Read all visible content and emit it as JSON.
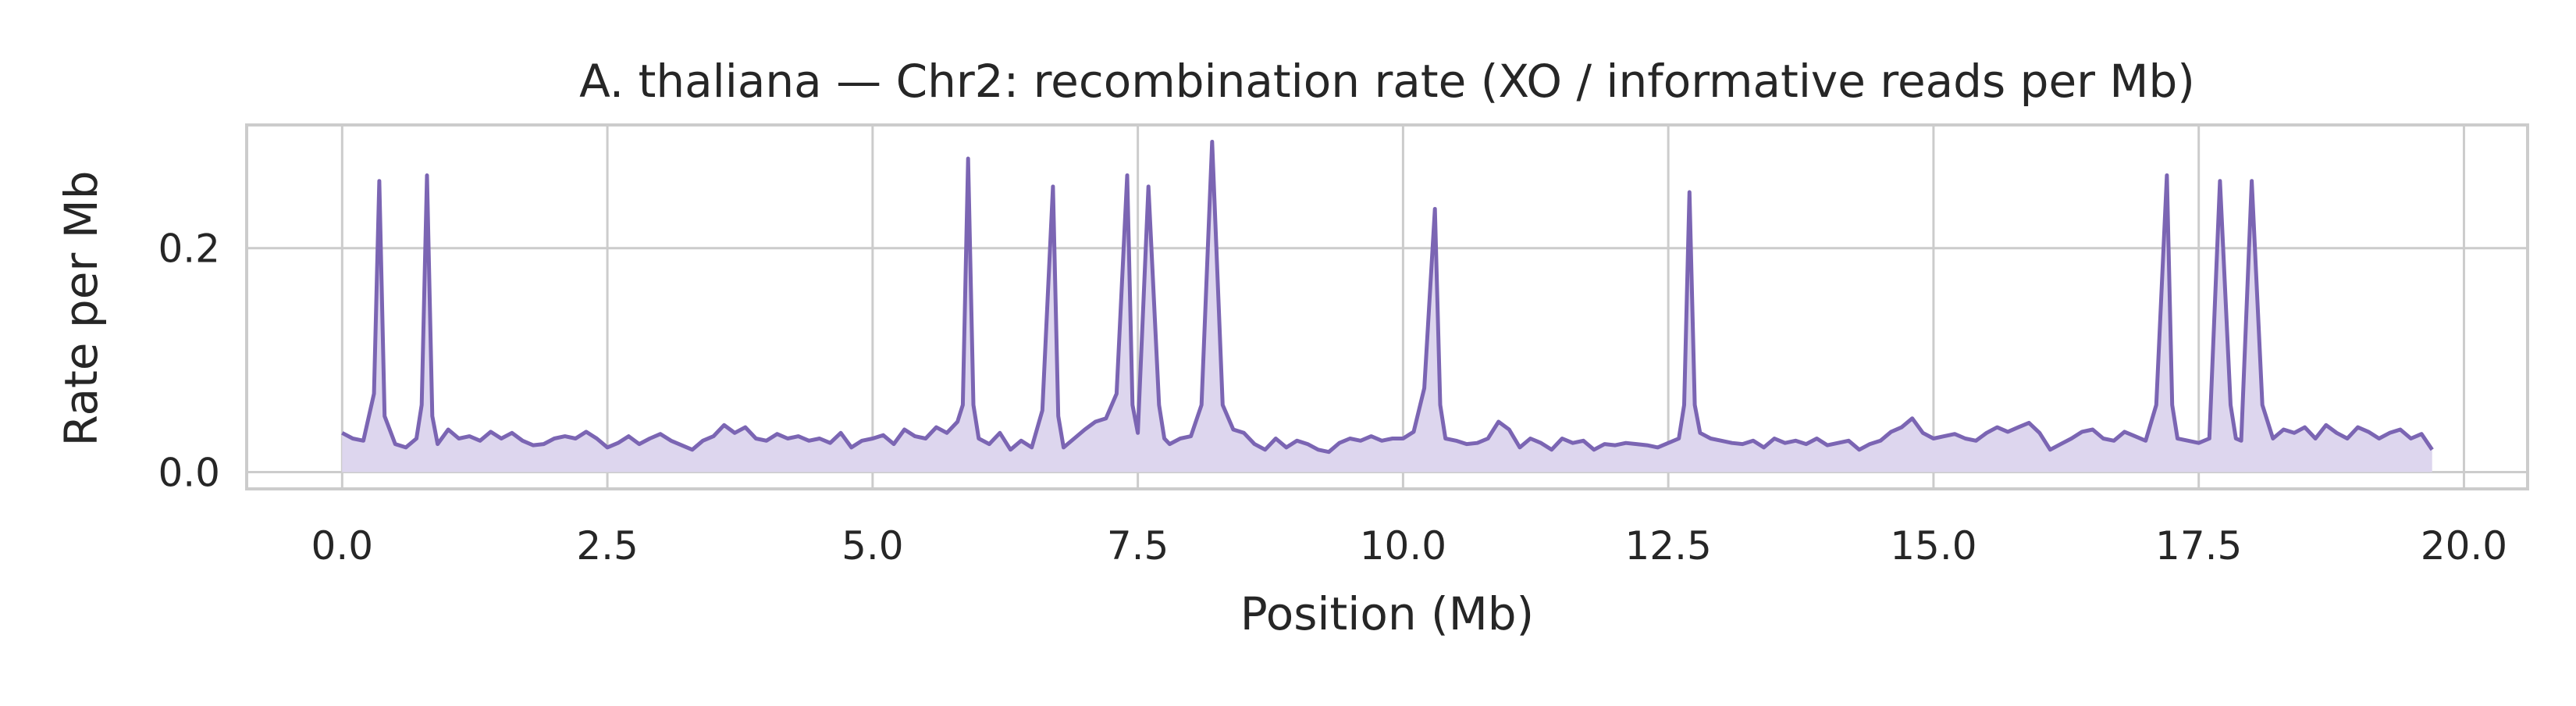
{
  "chart_data": {
    "type": "area",
    "title": "A. thaliana — Chr2: recombination rate (XO / informative reads per Mb)",
    "xlabel": "Position (Mb)",
    "ylabel": "Rate per Mb",
    "xlim": [
      -0.9,
      20.6
    ],
    "ylim": [
      -0.015,
      0.31
    ],
    "xticks": [
      0.0,
      2.5,
      5.0,
      7.5,
      10.0,
      12.5,
      15.0,
      17.5,
      20.0
    ],
    "xtick_labels": [
      "0.0",
      "2.5",
      "5.0",
      "7.5",
      "10.0",
      "12.5",
      "15.0",
      "17.5",
      "20.0"
    ],
    "yticks": [
      0.0,
      0.2
    ],
    "ytick_labels": [
      "0.0",
      "0.2"
    ],
    "grid": true,
    "line_color": "#7b65b3",
    "fill_color": "#ddd6ee",
    "grid_color": "#cccccc",
    "series": [
      {
        "x": [
          0.0,
          0.1,
          0.2,
          0.3,
          0.35,
          0.4,
          0.5,
          0.6,
          0.7,
          0.75,
          0.8,
          0.85,
          0.9,
          1.0,
          1.1,
          1.2,
          1.3,
          1.4,
          1.5,
          1.6,
          1.7,
          1.8,
          1.9,
          2.0,
          2.1,
          2.2,
          2.3,
          2.4,
          2.5,
          2.6,
          2.7,
          2.8,
          2.9,
          3.0,
          3.1,
          3.2,
          3.3,
          3.4,
          3.5,
          3.6,
          3.7,
          3.8,
          3.9,
          4.0,
          4.1,
          4.2,
          4.3,
          4.4,
          4.5,
          4.6,
          4.7,
          4.8,
          4.9,
          5.0,
          5.1,
          5.2,
          5.3,
          5.4,
          5.5,
          5.6,
          5.7,
          5.8,
          5.85,
          5.9,
          5.95,
          6.0,
          6.1,
          6.2,
          6.3,
          6.4,
          6.5,
          6.6,
          6.7,
          6.75,
          6.8,
          6.9,
          7.0,
          7.1,
          7.2,
          7.3,
          7.4,
          7.45,
          7.5,
          7.6,
          7.7,
          7.75,
          7.8,
          7.9,
          8.0,
          8.1,
          8.2,
          8.3,
          8.4,
          8.5,
          8.6,
          8.7,
          8.8,
          8.9,
          9.0,
          9.1,
          9.2,
          9.3,
          9.4,
          9.5,
          9.6,
          9.7,
          9.8,
          9.9,
          10.0,
          10.1,
          10.2,
          10.3,
          10.35,
          10.4,
          10.5,
          10.6,
          10.7,
          10.8,
          10.9,
          11.0,
          11.1,
          11.2,
          11.3,
          11.4,
          11.5,
          11.6,
          11.7,
          11.8,
          11.9,
          12.0,
          12.1,
          12.2,
          12.3,
          12.4,
          12.5,
          12.6,
          12.65,
          12.7,
          12.75,
          12.8,
          12.9,
          13.0,
          13.1,
          13.2,
          13.3,
          13.4,
          13.5,
          13.6,
          13.7,
          13.8,
          13.9,
          14.0,
          14.1,
          14.2,
          14.3,
          14.4,
          14.5,
          14.6,
          14.7,
          14.8,
          14.9,
          15.0,
          15.1,
          15.2,
          15.3,
          15.4,
          15.5,
          15.6,
          15.7,
          15.8,
          15.9,
          16.0,
          16.1,
          16.2,
          16.3,
          16.4,
          16.5,
          16.6,
          16.7,
          16.8,
          16.9,
          17.0,
          17.1,
          17.2,
          17.25,
          17.3,
          17.4,
          17.5,
          17.6,
          17.7,
          17.8,
          17.85,
          17.9,
          18.0,
          18.1,
          18.2,
          18.3,
          18.4,
          18.5,
          18.6,
          18.7,
          18.8,
          18.9,
          19.0,
          19.1,
          19.2,
          19.3,
          19.4,
          19.5,
          19.6,
          19.7
        ],
        "y": [
          0.035,
          0.03,
          0.028,
          0.07,
          0.26,
          0.05,
          0.025,
          0.022,
          0.03,
          0.06,
          0.265,
          0.05,
          0.025,
          0.038,
          0.03,
          0.032,
          0.028,
          0.036,
          0.03,
          0.035,
          0.028,
          0.024,
          0.025,
          0.03,
          0.032,
          0.03,
          0.036,
          0.03,
          0.022,
          0.026,
          0.032,
          0.025,
          0.03,
          0.034,
          0.028,
          0.024,
          0.02,
          0.028,
          0.032,
          0.042,
          0.035,
          0.04,
          0.03,
          0.028,
          0.034,
          0.03,
          0.032,
          0.028,
          0.03,
          0.026,
          0.035,
          0.022,
          0.028,
          0.03,
          0.033,
          0.025,
          0.038,
          0.032,
          0.03,
          0.04,
          0.035,
          0.045,
          0.06,
          0.28,
          0.06,
          0.03,
          0.025,
          0.035,
          0.02,
          0.028,
          0.022,
          0.055,
          0.255,
          0.05,
          0.022,
          0.03,
          0.038,
          0.045,
          0.048,
          0.07,
          0.265,
          0.06,
          0.035,
          0.255,
          0.06,
          0.03,
          0.025,
          0.03,
          0.032,
          0.06,
          0.295,
          0.06,
          0.038,
          0.035,
          0.025,
          0.02,
          0.03,
          0.022,
          0.028,
          0.025,
          0.02,
          0.018,
          0.026,
          0.03,
          0.028,
          0.032,
          0.028,
          0.03,
          0.03,
          0.036,
          0.075,
          0.235,
          0.06,
          0.03,
          0.028,
          0.025,
          0.026,
          0.03,
          0.045,
          0.038,
          0.022,
          0.03,
          0.026,
          0.02,
          0.03,
          0.026,
          0.028,
          0.02,
          0.025,
          0.024,
          0.026,
          0.025,
          0.024,
          0.022,
          0.026,
          0.03,
          0.06,
          0.25,
          0.06,
          0.035,
          0.03,
          0.028,
          0.026,
          0.025,
          0.028,
          0.022,
          0.03,
          0.026,
          0.028,
          0.025,
          0.03,
          0.024,
          0.026,
          0.028,
          0.02,
          0.025,
          0.028,
          0.036,
          0.04,
          0.048,
          0.035,
          0.03,
          0.032,
          0.034,
          0.03,
          0.028,
          0.035,
          0.04,
          0.036,
          0.04,
          0.044,
          0.035,
          0.02,
          0.025,
          0.03,
          0.036,
          0.038,
          0.03,
          0.028,
          0.036,
          0.032,
          0.028,
          0.06,
          0.265,
          0.06,
          0.03,
          0.028,
          0.026,
          0.03,
          0.26,
          0.06,
          0.03,
          0.028,
          0.26,
          0.06,
          0.03,
          0.038,
          0.035,
          0.04,
          0.03,
          0.042,
          0.035,
          0.03,
          0.04,
          0.036,
          0.03,
          0.035,
          0.038,
          0.03,
          0.034,
          0.02
        ]
      }
    ]
  }
}
